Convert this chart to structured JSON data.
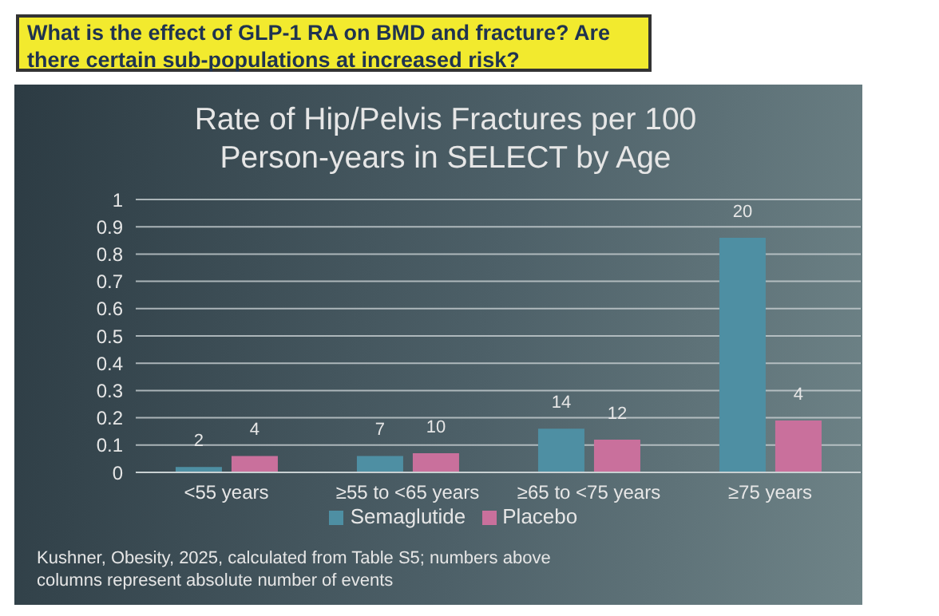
{
  "chart_data": {
    "type": "bar",
    "title": "Rate of Hip/Pelvis Fractures per 100 Person-years  in SELECT by Age",
    "annotations": [
      "What is the effect of GLP-1 RA on BMD and fracture? Are there certain sub-populations at increased risk?",
      {
        "text": "2",
        "x": "<55 years",
        "y": 0.02
      },
      {
        "text": "4",
        "x": "<55 years",
        "y": 0.06
      },
      {
        "text": "7",
        "x": "≥55 to <65 years",
        "y": 0.06
      },
      {
        "text": "10",
        "x": "≥55 to <65 years",
        "y": 0.07
      },
      {
        "text": "14",
        "x": "≥65 to <75 years",
        "y": 0.16
      },
      {
        "text": "12",
        "x": "≥65 to <75 years",
        "y": 0.12
      },
      {
        "text": "20",
        "x": "≥75 years",
        "y": 0.86
      },
      {
        "text": "4",
        "x": "≥75 years",
        "y": 0.19
      },
      "Kushner, Obesity, 2025, calculated from Table S5; numbers above columns represent absolute number of events"
    ],
    "categories": [
      "<55 years",
      "≥55 to <65 years",
      "≥65 to <75 years",
      "≥75 years"
    ],
    "series": [
      {
        "name": "Semaglutide",
        "color": "#4e8fa3",
        "values": [
          0.02,
          0.06,
          0.16,
          0.86
        ]
      },
      {
        "name": "Placebo",
        "color": "#c9709c",
        "values": [
          0.06,
          0.07,
          0.12,
          0.19
        ]
      }
    ],
    "ylim": [
      0,
      1
    ],
    "yticks": [
      0,
      0.1,
      0.2,
      0.3,
      0.4,
      0.5,
      0.6,
      0.7,
      0.8,
      0.9,
      1
    ],
    "grid": "y",
    "legend": "bottom"
  }
}
